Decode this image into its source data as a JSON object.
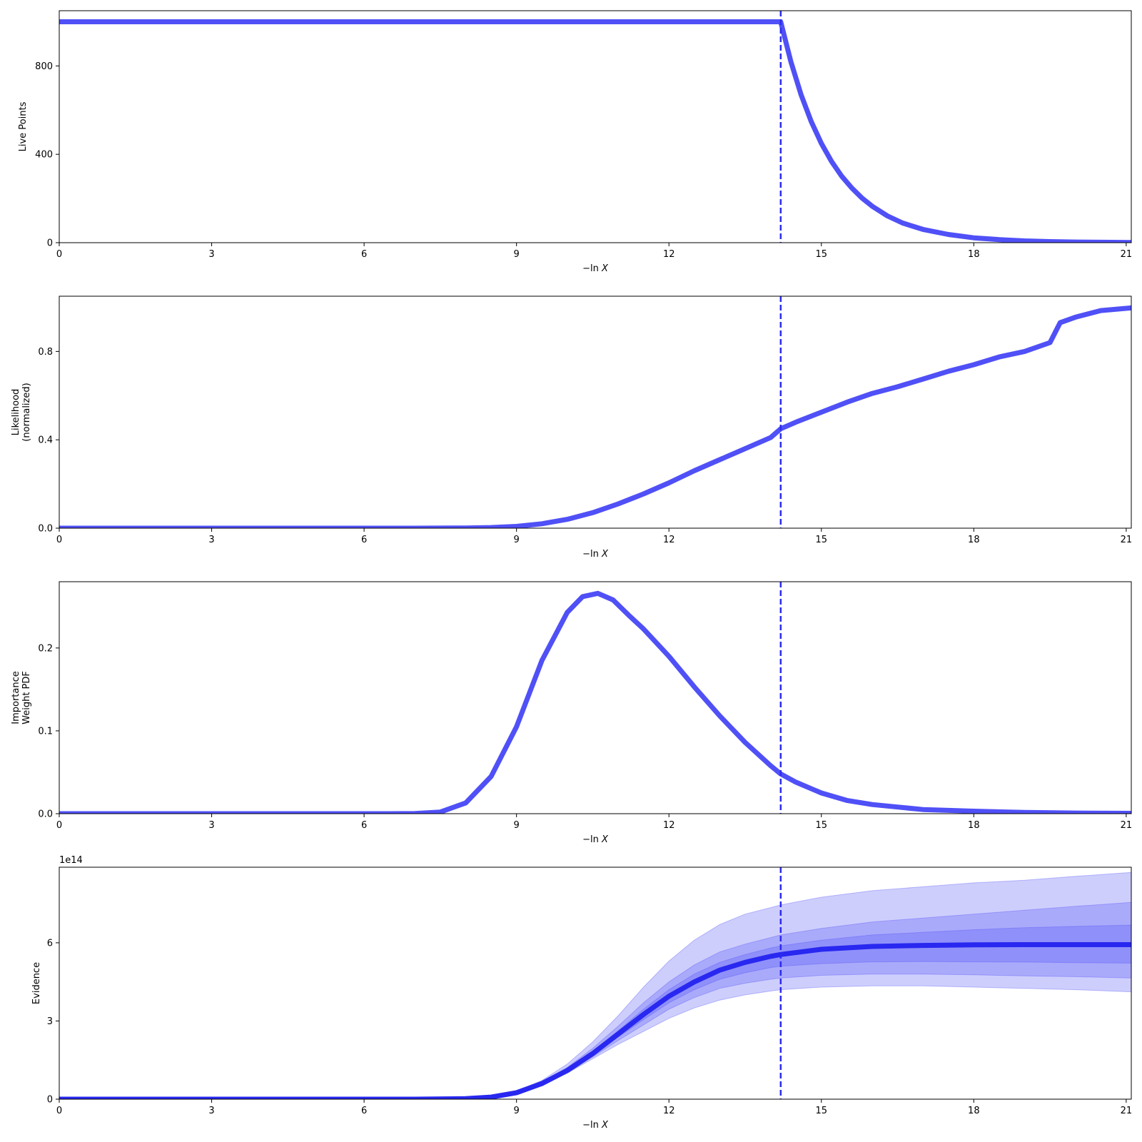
{
  "figure": {
    "accent_color": "#5050f7",
    "vline_color": "#2b2bf0",
    "vline_x": 14.2,
    "xlim": [
      0,
      21.1
    ],
    "xticks": [
      "0",
      "3",
      "6",
      "9",
      "12",
      "15",
      "18",
      "21"
    ]
  },
  "chart_data": [
    {
      "type": "line",
      "ylabel": [
        "Live Points"
      ],
      "xlabel_prefix": "−ln ",
      "xlabel_var": "X",
      "xlim": [
        0,
        21.1
      ],
      "ylim": [
        0,
        1050
      ],
      "yticks": [
        "0",
        "400",
        "800"
      ],
      "grid": false,
      "series": [
        {
          "x": [
            0,
            2,
            4,
            6,
            8,
            10,
            12,
            14.1,
            14.2,
            14.4,
            14.6,
            14.8,
            15.0,
            15.2,
            15.4,
            15.6,
            15.8,
            16.0,
            16.3,
            16.6,
            17.0,
            17.5,
            18.0,
            18.5,
            19.0,
            19.5,
            20.0,
            20.5,
            21.1
          ],
          "y": [
            1000,
            1000,
            1000,
            1000,
            1000,
            1000,
            1000,
            1000,
            1000,
            819,
            670,
            549,
            449,
            368,
            301,
            247,
            202,
            165,
            121,
            89,
            60,
            37,
            22,
            14,
            8,
            5,
            3,
            2,
            1
          ]
        }
      ]
    },
    {
      "type": "line",
      "ylabel": [
        "Likelihood",
        "(normalized)"
      ],
      "xlabel_prefix": "−ln ",
      "xlabel_var": "X",
      "xlim": [
        0,
        21.1
      ],
      "ylim": [
        0,
        1.05
      ],
      "yticks": [
        "0.0",
        "0.4",
        "0.8"
      ],
      "grid": false,
      "series": [
        {
          "x": [
            0,
            7,
            8,
            8.5,
            9,
            9.5,
            10,
            10.5,
            11,
            11.5,
            12,
            12.5,
            13,
            13.5,
            14,
            14.2,
            14.5,
            15,
            15.5,
            16,
            16.5,
            17,
            17.5,
            18,
            18.5,
            19,
            19.5,
            19.7,
            20,
            20.5,
            21.1
          ],
          "y": [
            0,
            0,
            0.001,
            0.003,
            0.008,
            0.02,
            0.04,
            0.07,
            0.11,
            0.155,
            0.205,
            0.26,
            0.31,
            0.36,
            0.41,
            0.45,
            0.48,
            0.525,
            0.57,
            0.61,
            0.64,
            0.675,
            0.71,
            0.74,
            0.775,
            0.8,
            0.84,
            0.93,
            0.955,
            0.985,
            0.997
          ]
        }
      ]
    },
    {
      "type": "line",
      "ylabel": [
        "Importance",
        "Weight PDF"
      ],
      "xlabel_prefix": "−ln ",
      "xlabel_var": "X",
      "xlim": [
        0,
        21.1
      ],
      "ylim": [
        0,
        0.28
      ],
      "yticks": [
        "0.0",
        "0.1",
        "0.2"
      ],
      "grid": false,
      "series": [
        {
          "x": [
            0,
            6.5,
            7,
            7.5,
            8,
            8.5,
            9,
            9.5,
            10,
            10.3,
            10.6,
            10.9,
            11.2,
            11.5,
            12,
            12.5,
            13,
            13.5,
            14,
            14.2,
            14.5,
            15,
            15.5,
            16,
            16.5,
            17,
            18,
            19,
            20,
            21.1
          ],
          "y": [
            0,
            0,
            0.0003,
            0.002,
            0.013,
            0.045,
            0.105,
            0.185,
            0.243,
            0.262,
            0.266,
            0.258,
            0.24,
            0.223,
            0.19,
            0.153,
            0.118,
            0.086,
            0.058,
            0.048,
            0.038,
            0.025,
            0.016,
            0.011,
            0.008,
            0.005,
            0.003,
            0.0015,
            0.0008,
            0.0004
          ]
        }
      ]
    },
    {
      "type": "area",
      "ylabel": [
        "Evidence"
      ],
      "xlabel_prefix": "−ln ",
      "xlabel_var": "X",
      "offset_text": "1e14",
      "xlim": [
        0,
        21.1
      ],
      "ylim": [
        0,
        8.9
      ],
      "yticks": [
        "0",
        "3",
        "6"
      ],
      "grid": false,
      "x": [
        0,
        7,
        8,
        8.5,
        9,
        9.5,
        10,
        10.5,
        11,
        11.5,
        12,
        12.5,
        13,
        13.5,
        14,
        14.2,
        15,
        16,
        17,
        18,
        19,
        20,
        21.1
      ],
      "series": [
        {
          "name": "",
          "values": [
            0,
            0,
            0.02,
            0.08,
            0.25,
            0.6,
            1.1,
            1.75,
            2.5,
            3.25,
            3.95,
            4.5,
            4.95,
            5.25,
            5.48,
            5.55,
            5.75,
            5.86,
            5.9,
            5.92,
            5.93,
            5.93,
            5.93
          ]
        }
      ],
      "bands": [
        {
          "lower": [
            0,
            0,
            0.02,
            0.07,
            0.22,
            0.55,
            1.0,
            1.55,
            2.1,
            2.6,
            3.1,
            3.5,
            3.8,
            4.0,
            4.15,
            4.2,
            4.3,
            4.35,
            4.35,
            4.3,
            4.25,
            4.2,
            4.12
          ],
          "upper": [
            0,
            0,
            0.02,
            0.09,
            0.3,
            0.72,
            1.35,
            2.2,
            3.2,
            4.3,
            5.3,
            6.1,
            6.7,
            7.1,
            7.35,
            7.45,
            7.75,
            8.0,
            8.15,
            8.3,
            8.4,
            8.55,
            8.7
          ]
        },
        {
          "lower": [
            0,
            0,
            0.02,
            0.07,
            0.23,
            0.57,
            1.03,
            1.62,
            2.25,
            2.85,
            3.45,
            3.9,
            4.25,
            4.45,
            4.6,
            4.65,
            4.75,
            4.8,
            4.8,
            4.77,
            4.73,
            4.7,
            4.65
          ],
          "upper": [
            0,
            0,
            0.02,
            0.09,
            0.28,
            0.67,
            1.22,
            1.95,
            2.8,
            3.7,
            4.5,
            5.15,
            5.65,
            5.95,
            6.2,
            6.3,
            6.55,
            6.8,
            6.95,
            7.1,
            7.25,
            7.4,
            7.55
          ]
        },
        {
          "lower": [
            0,
            0,
            0.02,
            0.07,
            0.24,
            0.58,
            1.06,
            1.68,
            2.38,
            3.05,
            3.7,
            4.2,
            4.6,
            4.85,
            5.05,
            5.1,
            5.2,
            5.27,
            5.28,
            5.27,
            5.26,
            5.24,
            5.22
          ],
          "upper": [
            0,
            0,
            0.02,
            0.08,
            0.26,
            0.63,
            1.15,
            1.83,
            2.62,
            3.45,
            4.2,
            4.8,
            5.25,
            5.55,
            5.8,
            5.88,
            6.1,
            6.3,
            6.4,
            6.5,
            6.58,
            6.63,
            6.68
          ]
        }
      ]
    }
  ]
}
